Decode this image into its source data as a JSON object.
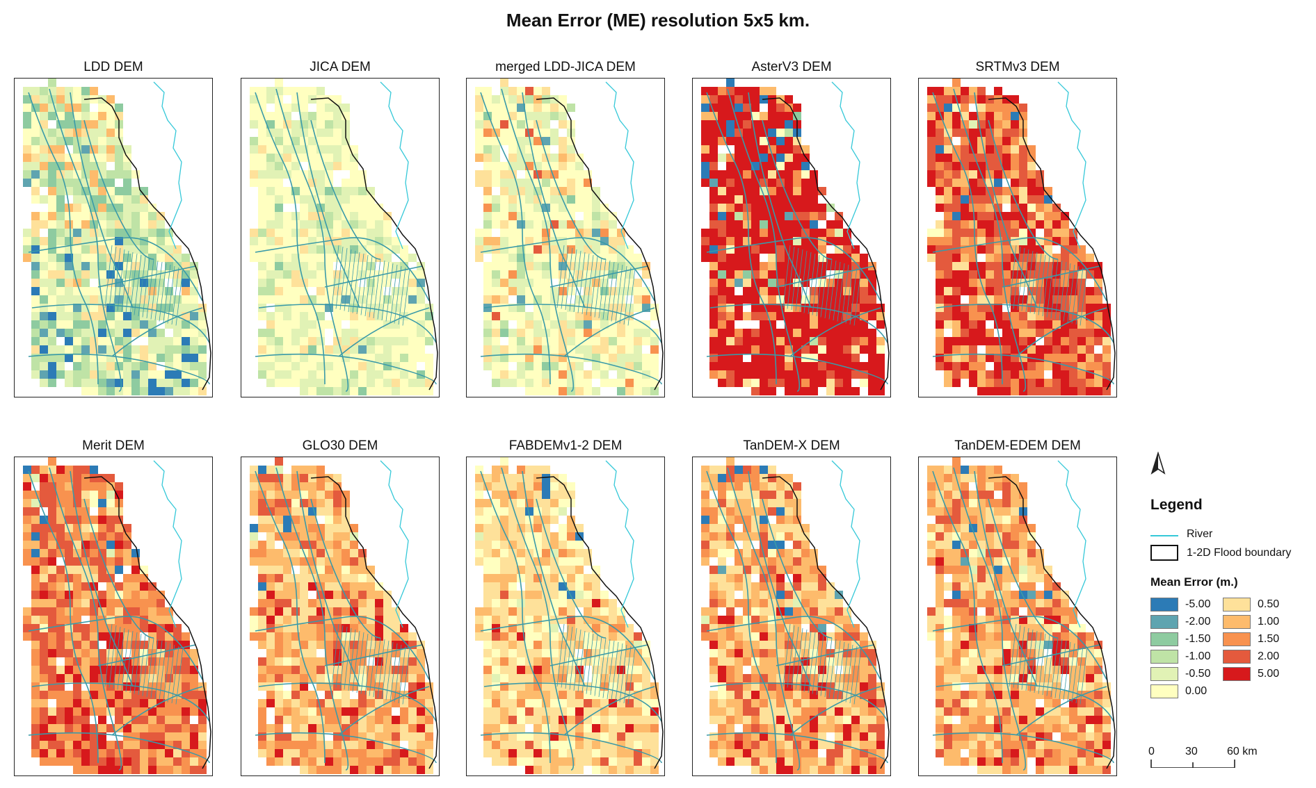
{
  "title": "Mean Error (ME) resolution 5x5 km.",
  "panels": [
    {
      "label": "LDD DEM",
      "dist": [
        2,
        5,
        12,
        16,
        25,
        20,
        15,
        5,
        0,
        0,
        0
      ],
      "offset": -2
    },
    {
      "label": "JICA DEM",
      "dist": [
        0,
        1,
        2,
        8,
        30,
        52,
        7,
        0,
        0,
        0,
        0
      ],
      "offset": 0
    },
    {
      "label": "merged LDD-JICA DEM",
      "dist": [
        0,
        1,
        2,
        6,
        22,
        45,
        16,
        5,
        2,
        1,
        0
      ],
      "offset": 0
    },
    {
      "label": "AsterV3 DEM",
      "dist": [
        2,
        1,
        1,
        1,
        1,
        2,
        2,
        4,
        6,
        12,
        68
      ],
      "offset": 3
    },
    {
      "label": "SRTMv3 DEM",
      "dist": [
        0,
        0,
        0,
        0,
        1,
        2,
        6,
        12,
        20,
        30,
        29
      ],
      "offset": 2
    },
    {
      "label": "Merit DEM",
      "dist": [
        0,
        0,
        0,
        0,
        1,
        2,
        5,
        18,
        32,
        28,
        14
      ],
      "offset": 1.5
    },
    {
      "label": "GLO30 DEM",
      "dist": [
        0,
        0,
        0,
        0,
        1,
        5,
        25,
        30,
        22,
        12,
        5
      ],
      "offset": 1
    },
    {
      "label": "FABDEMv1-2 DEM",
      "dist": [
        0,
        0,
        0,
        0,
        3,
        20,
        45,
        22,
        6,
        3,
        1
      ],
      "offset": 0.5
    },
    {
      "label": "TanDEM-X DEM",
      "dist": [
        1,
        1,
        0,
        0,
        1,
        4,
        24,
        30,
        22,
        12,
        5
      ],
      "offset": 1
    },
    {
      "label": "TanDEM-EDEM DEM",
      "dist": [
        1,
        1,
        0,
        0,
        1,
        4,
        23,
        30,
        23,
        12,
        5
      ],
      "offset": 1
    }
  ],
  "legend": {
    "title": "Legend",
    "river": "River",
    "boundary": "1-2D Flood boundary",
    "me_title": "Mean Error (m.)",
    "classes": [
      {
        "label": "-5.00",
        "color": "#2c7bb6"
      },
      {
        "label": "-2.00",
        "color": "#5fa4b0"
      },
      {
        "label": "-1.50",
        "color": "#8ecba0"
      },
      {
        "label": "-1.00",
        "color": "#bfe3a6"
      },
      {
        "label": "-0.50",
        "color": "#e1f2b5"
      },
      {
        "label": "0.00",
        "color": "#ffffc0"
      },
      {
        "label": "0.50",
        "color": "#fee19a"
      },
      {
        "label": "1.00",
        "color": "#fdbb6c"
      },
      {
        "label": "1.50",
        "color": "#f8924f"
      },
      {
        "label": "2.00",
        "color": "#e45a3d"
      },
      {
        "label": "5.00",
        "color": "#d7191c"
      }
    ]
  },
  "scale": {
    "labels": [
      "0",
      "30",
      "60 km"
    ]
  },
  "colors": {
    "river": "#35c8d8",
    "channel": "#3a9aa8",
    "boundary": "#111111"
  }
}
